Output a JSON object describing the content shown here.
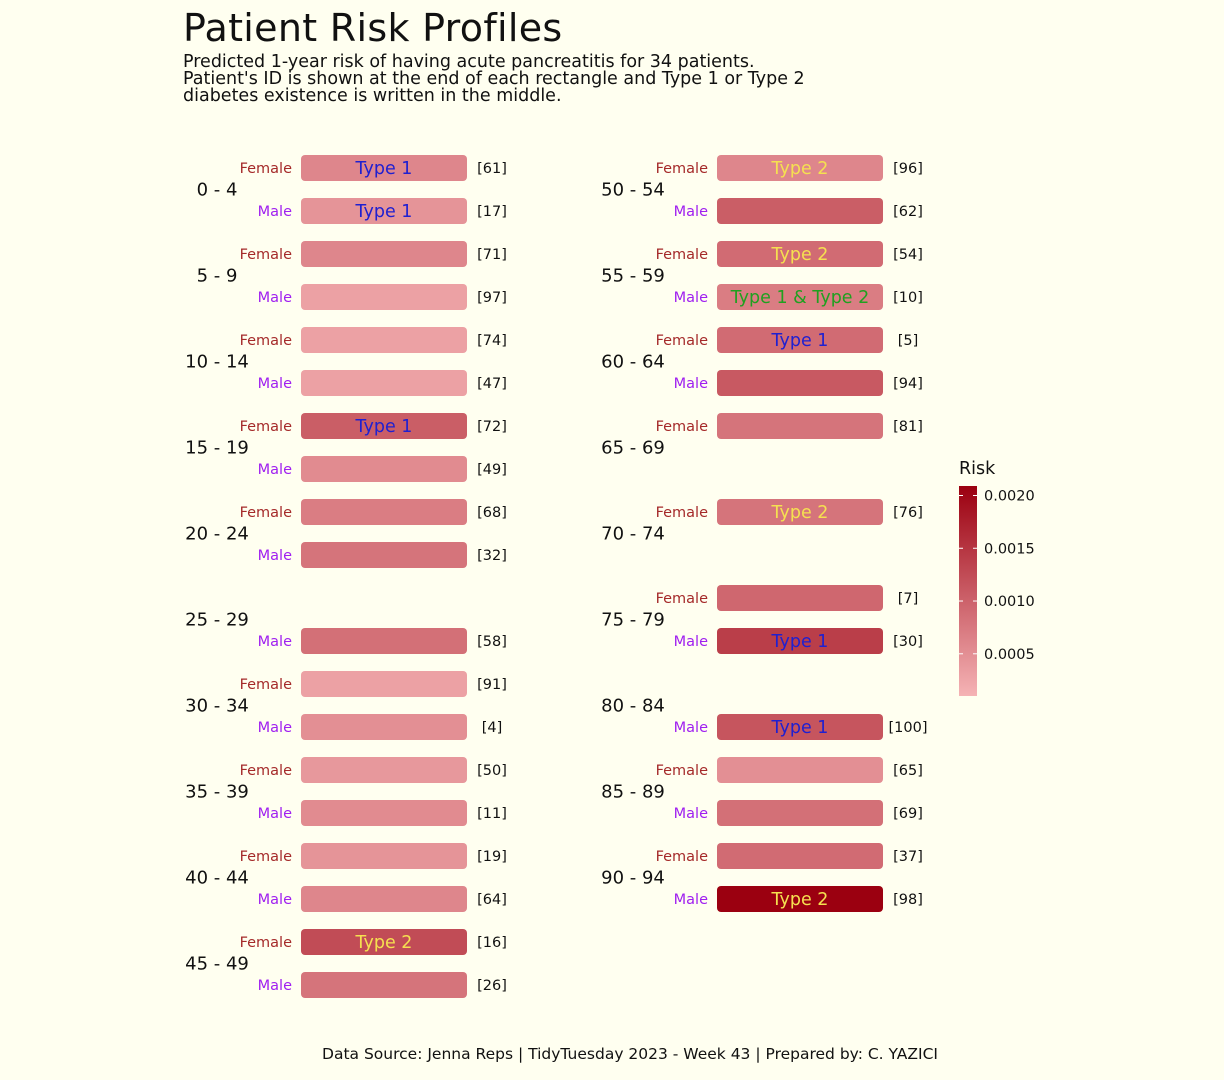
{
  "page": {
    "title": "Patient Risk Profiles",
    "subtitle_lines": [
      "Predicted 1-year risk of having acute pancreatitis for 34 patients.",
      "Patient's ID is shown at the end of each rectangle and Type 1 or Type 2",
      "diabetes existence is written in the middle."
    ],
    "caption": "Data Source: Jenna Reps | TidyTuesday 2023 - Week 43 | Prepared by: C. YAZICI"
  },
  "colors": {
    "background": "#fffff0",
    "female_label": "#a52a2a",
    "male_label": "#a020f0",
    "type1_text": "#2020d0",
    "type2_text": "#f5e050",
    "type12_text": "#20a020",
    "risk_low": "#f5b3b5",
    "risk_high": "#9b0010"
  },
  "chart_data": {
    "type": "tile",
    "legend": {
      "title": "Risk",
      "ticks": [
        "0.0005",
        "0.0010",
        "0.0015",
        "0.0020"
      ],
      "range": [
        0.0001,
        0.00209
      ],
      "position": "right"
    },
    "sex_labels": {
      "Female": "Female",
      "Male": "Male"
    },
    "groups": [
      {
        "age": "0 - 4",
        "rows": [
          {
            "sex": "Female",
            "id": "[61]",
            "risk": 0.0006,
            "diabetes": "Type 1"
          },
          {
            "sex": "Male",
            "id": "[17]",
            "risk": 0.00045,
            "diabetes": "Type 1"
          }
        ]
      },
      {
        "age": "5 - 9",
        "rows": [
          {
            "sex": "Female",
            "id": "[71]",
            "risk": 0.0006,
            "diabetes": ""
          },
          {
            "sex": "Male",
            "id": "[97]",
            "risk": 0.0003,
            "diabetes": ""
          }
        ]
      },
      {
        "age": "10 - 14",
        "rows": [
          {
            "sex": "Female",
            "id": "[74]",
            "risk": 0.0003,
            "diabetes": ""
          },
          {
            "sex": "Male",
            "id": "[47]",
            "risk": 0.0003,
            "diabetes": ""
          }
        ]
      },
      {
        "age": "15 - 19",
        "rows": [
          {
            "sex": "Female",
            "id": "[72]",
            "risk": 0.00105,
            "diabetes": "Type 1"
          },
          {
            "sex": "Male",
            "id": "[49]",
            "risk": 0.00055,
            "diabetes": ""
          }
        ]
      },
      {
        "age": "20 - 24",
        "rows": [
          {
            "sex": "Female",
            "id": "[68]",
            "risk": 0.0007,
            "diabetes": ""
          },
          {
            "sex": "Male",
            "id": "[32]",
            "risk": 0.0008,
            "diabetes": ""
          }
        ]
      },
      {
        "age": "25 - 29",
        "rows": [
          {
            "sex": "Male",
            "id": "[58]",
            "risk": 0.00085,
            "diabetes": ""
          }
        ]
      },
      {
        "age": "30 - 34",
        "rows": [
          {
            "sex": "Female",
            "id": "[91]",
            "risk": 0.0003,
            "diabetes": ""
          },
          {
            "sex": "Male",
            "id": "[4]",
            "risk": 0.0005,
            "diabetes": ""
          }
        ]
      },
      {
        "age": "35 - 39",
        "rows": [
          {
            "sex": "Female",
            "id": "[50]",
            "risk": 0.0004,
            "diabetes": ""
          },
          {
            "sex": "Male",
            "id": "[11]",
            "risk": 0.00055,
            "diabetes": ""
          }
        ]
      },
      {
        "age": "40 - 44",
        "rows": [
          {
            "sex": "Female",
            "id": "[19]",
            "risk": 0.00045,
            "diabetes": ""
          },
          {
            "sex": "Male",
            "id": "[64]",
            "risk": 0.0006,
            "diabetes": ""
          }
        ]
      },
      {
        "age": "45 - 49",
        "rows": [
          {
            "sex": "Female",
            "id": "[16]",
            "risk": 0.00125,
            "diabetes": "Type 2"
          },
          {
            "sex": "Male",
            "id": "[26]",
            "risk": 0.0008,
            "diabetes": ""
          }
        ]
      },
      {
        "age": "50 - 54",
        "rows": [
          {
            "sex": "Female",
            "id": "[96]",
            "risk": 0.0006,
            "diabetes": "Type 2"
          },
          {
            "sex": "Male",
            "id": "[62]",
            "risk": 0.00105,
            "diabetes": ""
          }
        ]
      },
      {
        "age": "55 - 59",
        "rows": [
          {
            "sex": "Female",
            "id": "[54]",
            "risk": 0.0009,
            "diabetes": "Type 2"
          },
          {
            "sex": "Male",
            "id": "[10]",
            "risk": 0.0007,
            "diabetes": "Type 1 & Type 2"
          }
        ]
      },
      {
        "age": "60 - 64",
        "rows": [
          {
            "sex": "Female",
            "id": "[5]",
            "risk": 0.0009,
            "diabetes": "Type 1"
          },
          {
            "sex": "Male",
            "id": "[94]",
            "risk": 0.0011,
            "diabetes": ""
          }
        ]
      },
      {
        "age": "65 - 69",
        "rows": [
          {
            "sex": "Female",
            "id": "[81]",
            "risk": 0.0008,
            "diabetes": ""
          }
        ]
      },
      {
        "age": "70 - 74",
        "rows": [
          {
            "sex": "Female",
            "id": "[76]",
            "risk": 0.0008,
            "diabetes": "Type 2"
          }
        ]
      },
      {
        "age": "75 - 79",
        "rows": [
          {
            "sex": "Female",
            "id": "[7]",
            "risk": 0.00095,
            "diabetes": ""
          },
          {
            "sex": "Male",
            "id": "[30]",
            "risk": 0.0014,
            "diabetes": "Type 1"
          }
        ]
      },
      {
        "age": "80 - 84",
        "rows": [
          {
            "sex": "Male",
            "id": "[100]",
            "risk": 0.00115,
            "diabetes": "Type 1"
          }
        ]
      },
      {
        "age": "85 - 89",
        "rows": [
          {
            "sex": "Female",
            "id": "[65]",
            "risk": 0.0005,
            "diabetes": ""
          },
          {
            "sex": "Male",
            "id": "[69]",
            "risk": 0.00085,
            "diabetes": ""
          }
        ]
      },
      {
        "age": "90 - 94",
        "rows": [
          {
            "sex": "Female",
            "id": "[37]",
            "risk": 0.0009,
            "diabetes": ""
          },
          {
            "sex": "Male",
            "id": "[98]",
            "risk": 0.00209,
            "diabetes": "Type 2"
          }
        ]
      }
    ]
  }
}
